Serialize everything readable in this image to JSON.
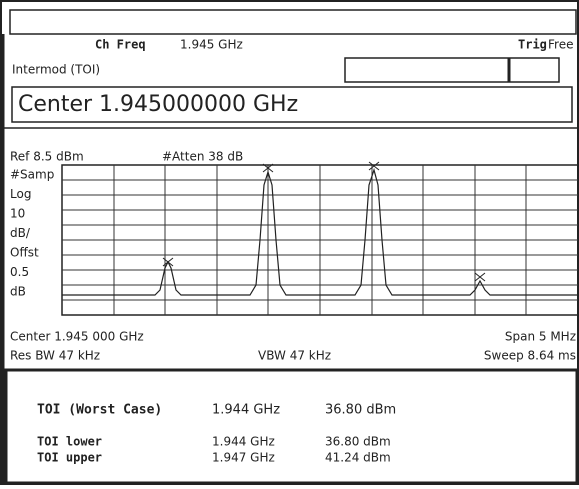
{
  "header": {
    "ch_freq_label": "Ch Freq",
    "ch_freq_value": "1.945 GHz",
    "trig_label": "Trig",
    "trig_value": "Free",
    "mode": "Intermod (TOI)",
    "center": "Center 1.945000000 GHz"
  },
  "display": {
    "ref": "Ref 8.5 dBm",
    "atten": "#Atten 38 dB",
    "side_labels": [
      "#Samp",
      "Log",
      "10",
      "dB/",
      "Offst",
      "0.5",
      "dB"
    ],
    "center_freq": "Center 1.945 000 GHz",
    "span": "Span 5 MHz",
    "res_bw": "Res BW 47 kHz",
    "vbw": "VBW 47 kHz",
    "sweep": "Sweep 8.64 ms"
  },
  "results": {
    "rows": [
      [
        "TOI (Worst Case)",
        "1.944 GHz",
        "36.80 dBm"
      ],
      [
        "TOI lower",
        "1.944 GHz",
        "36.80 dBm"
      ],
      [
        "TOI upper",
        "1.947 GHz",
        "41.24 dBm"
      ]
    ]
  }
}
